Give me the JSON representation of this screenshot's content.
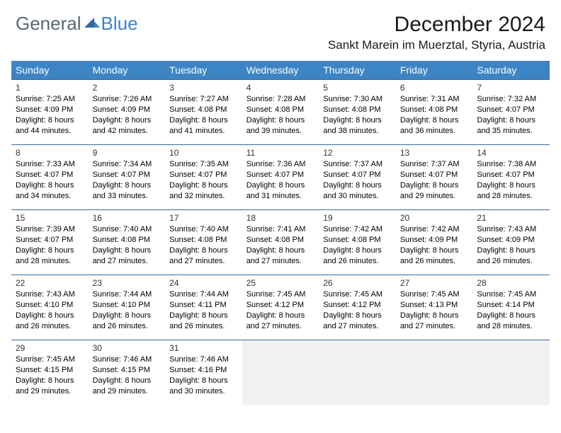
{
  "colors": {
    "header_bg": "#3d84c4",
    "header_text": "#ffffff",
    "row_border": "#2f6aa3",
    "empty_bg": "#f1f1f1",
    "body_text": "#000000",
    "logo_gray": "#5a6770",
    "logo_blue": "#3d84c4"
  },
  "logo": {
    "general": "General",
    "blue": "Blue"
  },
  "title": "December 2024",
  "location": "Sankt Marein im Muerztal, Styria, Austria",
  "day_headers": [
    "Sunday",
    "Monday",
    "Tuesday",
    "Wednesday",
    "Thursday",
    "Friday",
    "Saturday"
  ],
  "weeks": [
    [
      {
        "n": "1",
        "sr": "Sunrise: 7:25 AM",
        "ss": "Sunset: 4:09 PM",
        "d1": "Daylight: 8 hours",
        "d2": "and 44 minutes."
      },
      {
        "n": "2",
        "sr": "Sunrise: 7:26 AM",
        "ss": "Sunset: 4:09 PM",
        "d1": "Daylight: 8 hours",
        "d2": "and 42 minutes."
      },
      {
        "n": "3",
        "sr": "Sunrise: 7:27 AM",
        "ss": "Sunset: 4:08 PM",
        "d1": "Daylight: 8 hours",
        "d2": "and 41 minutes."
      },
      {
        "n": "4",
        "sr": "Sunrise: 7:28 AM",
        "ss": "Sunset: 4:08 PM",
        "d1": "Daylight: 8 hours",
        "d2": "and 39 minutes."
      },
      {
        "n": "5",
        "sr": "Sunrise: 7:30 AM",
        "ss": "Sunset: 4:08 PM",
        "d1": "Daylight: 8 hours",
        "d2": "and 38 minutes."
      },
      {
        "n": "6",
        "sr": "Sunrise: 7:31 AM",
        "ss": "Sunset: 4:08 PM",
        "d1": "Daylight: 8 hours",
        "d2": "and 36 minutes."
      },
      {
        "n": "7",
        "sr": "Sunrise: 7:32 AM",
        "ss": "Sunset: 4:07 PM",
        "d1": "Daylight: 8 hours",
        "d2": "and 35 minutes."
      }
    ],
    [
      {
        "n": "8",
        "sr": "Sunrise: 7:33 AM",
        "ss": "Sunset: 4:07 PM",
        "d1": "Daylight: 8 hours",
        "d2": "and 34 minutes."
      },
      {
        "n": "9",
        "sr": "Sunrise: 7:34 AM",
        "ss": "Sunset: 4:07 PM",
        "d1": "Daylight: 8 hours",
        "d2": "and 33 minutes."
      },
      {
        "n": "10",
        "sr": "Sunrise: 7:35 AM",
        "ss": "Sunset: 4:07 PM",
        "d1": "Daylight: 8 hours",
        "d2": "and 32 minutes."
      },
      {
        "n": "11",
        "sr": "Sunrise: 7:36 AM",
        "ss": "Sunset: 4:07 PM",
        "d1": "Daylight: 8 hours",
        "d2": "and 31 minutes."
      },
      {
        "n": "12",
        "sr": "Sunrise: 7:37 AM",
        "ss": "Sunset: 4:07 PM",
        "d1": "Daylight: 8 hours",
        "d2": "and 30 minutes."
      },
      {
        "n": "13",
        "sr": "Sunrise: 7:37 AM",
        "ss": "Sunset: 4:07 PM",
        "d1": "Daylight: 8 hours",
        "d2": "and 29 minutes."
      },
      {
        "n": "14",
        "sr": "Sunrise: 7:38 AM",
        "ss": "Sunset: 4:07 PM",
        "d1": "Daylight: 8 hours",
        "d2": "and 28 minutes."
      }
    ],
    [
      {
        "n": "15",
        "sr": "Sunrise: 7:39 AM",
        "ss": "Sunset: 4:07 PM",
        "d1": "Daylight: 8 hours",
        "d2": "and 28 minutes."
      },
      {
        "n": "16",
        "sr": "Sunrise: 7:40 AM",
        "ss": "Sunset: 4:08 PM",
        "d1": "Daylight: 8 hours",
        "d2": "and 27 minutes."
      },
      {
        "n": "17",
        "sr": "Sunrise: 7:40 AM",
        "ss": "Sunset: 4:08 PM",
        "d1": "Daylight: 8 hours",
        "d2": "and 27 minutes."
      },
      {
        "n": "18",
        "sr": "Sunrise: 7:41 AM",
        "ss": "Sunset: 4:08 PM",
        "d1": "Daylight: 8 hours",
        "d2": "and 27 minutes."
      },
      {
        "n": "19",
        "sr": "Sunrise: 7:42 AM",
        "ss": "Sunset: 4:08 PM",
        "d1": "Daylight: 8 hours",
        "d2": "and 26 minutes."
      },
      {
        "n": "20",
        "sr": "Sunrise: 7:42 AM",
        "ss": "Sunset: 4:09 PM",
        "d1": "Daylight: 8 hours",
        "d2": "and 26 minutes."
      },
      {
        "n": "21",
        "sr": "Sunrise: 7:43 AM",
        "ss": "Sunset: 4:09 PM",
        "d1": "Daylight: 8 hours",
        "d2": "and 26 minutes."
      }
    ],
    [
      {
        "n": "22",
        "sr": "Sunrise: 7:43 AM",
        "ss": "Sunset: 4:10 PM",
        "d1": "Daylight: 8 hours",
        "d2": "and 26 minutes."
      },
      {
        "n": "23",
        "sr": "Sunrise: 7:44 AM",
        "ss": "Sunset: 4:10 PM",
        "d1": "Daylight: 8 hours",
        "d2": "and 26 minutes."
      },
      {
        "n": "24",
        "sr": "Sunrise: 7:44 AM",
        "ss": "Sunset: 4:11 PM",
        "d1": "Daylight: 8 hours",
        "d2": "and 26 minutes."
      },
      {
        "n": "25",
        "sr": "Sunrise: 7:45 AM",
        "ss": "Sunset: 4:12 PM",
        "d1": "Daylight: 8 hours",
        "d2": "and 27 minutes."
      },
      {
        "n": "26",
        "sr": "Sunrise: 7:45 AM",
        "ss": "Sunset: 4:12 PM",
        "d1": "Daylight: 8 hours",
        "d2": "and 27 minutes."
      },
      {
        "n": "27",
        "sr": "Sunrise: 7:45 AM",
        "ss": "Sunset: 4:13 PM",
        "d1": "Daylight: 8 hours",
        "d2": "and 27 minutes."
      },
      {
        "n": "28",
        "sr": "Sunrise: 7:45 AM",
        "ss": "Sunset: 4:14 PM",
        "d1": "Daylight: 8 hours",
        "d2": "and 28 minutes."
      }
    ],
    [
      {
        "n": "29",
        "sr": "Sunrise: 7:45 AM",
        "ss": "Sunset: 4:15 PM",
        "d1": "Daylight: 8 hours",
        "d2": "and 29 minutes."
      },
      {
        "n": "30",
        "sr": "Sunrise: 7:46 AM",
        "ss": "Sunset: 4:15 PM",
        "d1": "Daylight: 8 hours",
        "d2": "and 29 minutes."
      },
      {
        "n": "31",
        "sr": "Sunrise: 7:46 AM",
        "ss": "Sunset: 4:16 PM",
        "d1": "Daylight: 8 hours",
        "d2": "and 30 minutes."
      },
      {
        "empty": true
      },
      {
        "empty": true
      },
      {
        "empty": true
      },
      {
        "empty": true
      }
    ]
  ]
}
